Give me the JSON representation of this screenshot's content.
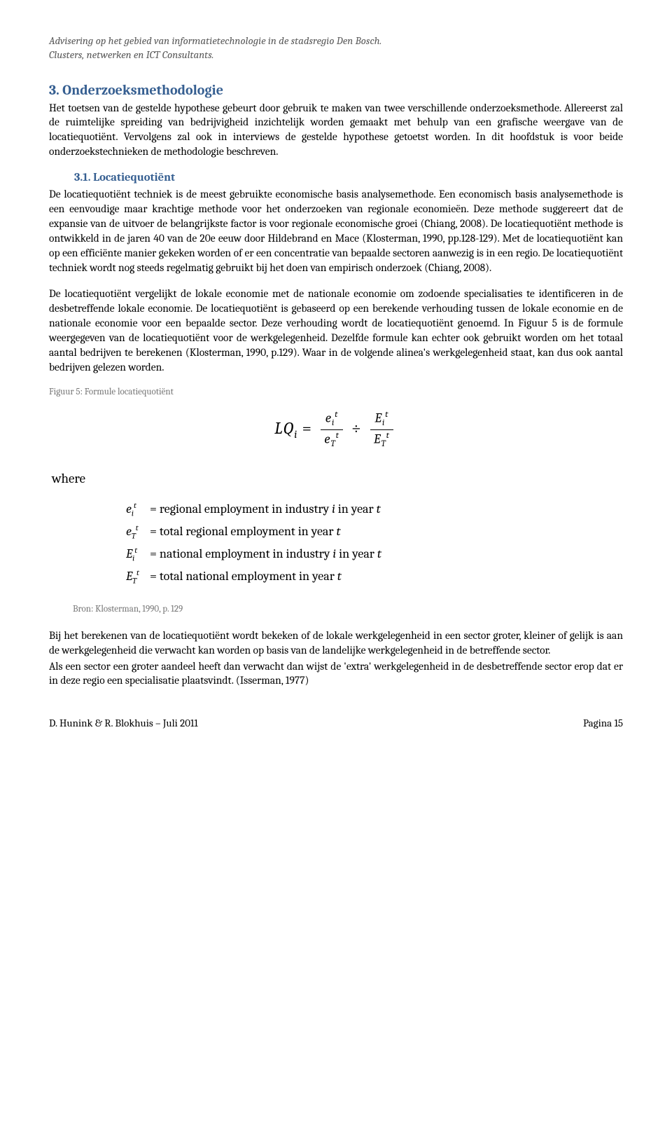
{
  "header": {
    "line1": "Advisering op het gebied van informatietechnologie in de stadsregio Den Bosch.",
    "line2": "Clusters, netwerken en ICT Consultants."
  },
  "chapter": {
    "number": "3.",
    "title": "Onderzoeksmethodologie"
  },
  "intro_para": "Het toetsen van de gestelde hypothese gebeurt door gebruik te maken van twee verschillende onderzoeksmethode. Allereerst zal de ruimtelijke spreiding van bedrijvigheid inzichtelijk worden gemaakt met behulp van een grafische weergave van de locatiequotiënt. Vervolgens zal ook in interviews de gestelde hypothese getoetst worden. In dit hoofdstuk is voor beide onderzoekstechnieken de methodologie beschreven.",
  "section": {
    "number": "3.1.",
    "title": "Locatiequotiënt"
  },
  "para1": "De locatiequotiënt techniek is de meest gebruikte economische basis analysemethode. Een economisch basis analysemethode is een eenvoudige maar krachtige methode voor het onderzoeken van regionale economieën. Deze methode suggereert dat de expansie van de uitvoer de belangrijkste factor is voor regionale economische groei (Chiang, 2008). De locatiequotiënt methode is ontwikkeld in de jaren 40 van de 20e eeuw door Hildebrand en Mace (Klosterman, 1990, pp.128-129). Met de locatiequotiënt kan op een efficiënte manier gekeken worden of er een concentratie van bepaalde sectoren aanwezig is in een regio. De locatiequotiënt techniek wordt nog steeds regelmatig gebruikt bij het doen van empirisch onderzoek (Chiang, 2008).",
  "para2": "De locatiequotiënt vergelijkt de lokale economie met de nationale economie om zodoende specialisaties te identificeren in de desbetreffende lokale economie. De locatiequotiënt is gebaseerd op een berekende verhouding tussen de lokale economie en de nationale economie voor een bepaalde sector. Deze verhouding wordt de locatiequotiënt genoemd. In Figuur 5 is de formule weergegeven van de locatiequotiënt voor de werkgelegenheid. Dezelfde formule kan echter ook gebruikt worden om het totaal aantal bedrijven te berekenen (Klosterman, 1990, p.129). Waar in de volgende alinea's werkgelegenheid staat, kan dus ook aantal bedrijven gelezen worden.",
  "figure_caption": "Figuur 5: Formule locatiequotiënt",
  "formula": {
    "lhs": "LQ",
    "lhs_sub": "i",
    "eq": " = ",
    "frac1_num_base": "e",
    "frac1_num_sub": "i",
    "frac1_num_sup": "t",
    "frac1_den_base": "e",
    "frac1_den_sub": "T",
    "frac1_den_sup": "t",
    "div": " ÷ ",
    "frac2_num_base": "E",
    "frac2_num_sub": "i",
    "frac2_num_sup": "t",
    "frac2_den_base": "E",
    "frac2_den_sub": "T",
    "frac2_den_sup": "t"
  },
  "where_label": "where",
  "defs": [
    {
      "sym_base": "e",
      "sym_sub": "i",
      "sym_sup": "t",
      "eq": " = ",
      "text": "regional employment in industry ",
      "ital": "i",
      "text2": " in year ",
      "ital2": "t"
    },
    {
      "sym_base": "e",
      "sym_sub": "T",
      "sym_sup": "t",
      "eq": " = ",
      "text": "total regional employment in year ",
      "ital": "t",
      "text2": "",
      "ital2": ""
    },
    {
      "sym_base": "E",
      "sym_sub": "i",
      "sym_sup": "t",
      "eq": " = ",
      "text": "national employment in industry ",
      "ital": "i",
      "text2": " in year ",
      "ital2": "t"
    },
    {
      "sym_base": "E",
      "sym_sub": "T",
      "sym_sup": "t",
      "eq": " = ",
      "text": "total national employment in year ",
      "ital": "t",
      "text2": "",
      "ital2": ""
    }
  ],
  "source": "Bron: Klosterman, 1990, p. 129",
  "para3": "Bij het berekenen van de locatiequotiënt wordt bekeken of de lokale werkgelegenheid in een sector groter, kleiner of gelijk is aan de werkgelegenheid die verwacht kan worden op basis van de landelijke werkgelegenheid in de betreffende sector.",
  "para4": "Als een sector een groter aandeel heeft dan verwacht dan wijst de 'extra' werkgelegenheid in de desbetreffende sector erop dat er in deze regio een specialisatie plaatsvindt. (Isserman, 1977)",
  "footer": {
    "left": "D. Hunink & R. Blokhuis – Juli 2011",
    "right": "Pagina 15"
  }
}
